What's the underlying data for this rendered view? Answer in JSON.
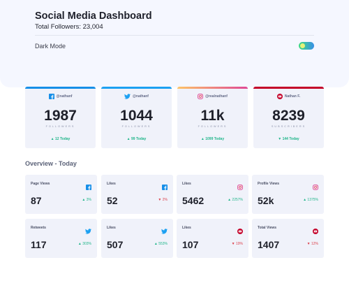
{
  "header": {
    "title": "Social Media Dashboard",
    "total_followers": "Total Followers: 23,004",
    "dark_mode_label": "Dark Mode"
  },
  "colors": {
    "facebook": "#178fe8",
    "twitter": "#1da1f2",
    "instagram_gradient": [
      "#fdc468",
      "#df4996"
    ],
    "youtube": "#c4032a",
    "up": "#1eb589",
    "down": "#dc414c"
  },
  "follower_cards": [
    {
      "network": "facebook",
      "icon": "facebook-icon",
      "handle": "@nathanf",
      "count": "1987",
      "label": "FOLLOWERS",
      "today": "▲ 12 Today"
    },
    {
      "network": "twitter",
      "icon": "twitter-icon",
      "handle": "@nathanf",
      "count": "1044",
      "label": "FOLLOWERS",
      "today": "▲ 99 Today"
    },
    {
      "network": "instagram",
      "icon": "instagram-icon",
      "handle": "@realnathanf",
      "count": "11k",
      "label": "FOLLOWERS",
      "today": "▲ 1099 Today"
    },
    {
      "network": "youtube",
      "icon": "youtube-icon",
      "handle": "Nathan F.",
      "count": "8239",
      "label": "SUBSCRIBERS",
      "today": "▼ 144 Today"
    }
  ],
  "overview": {
    "title": "Overview - Today",
    "cards": [
      {
        "label": "Page Views",
        "icon": "facebook-icon",
        "value": "87",
        "delta": "▲ 3%",
        "direction": "up"
      },
      {
        "label": "Likes",
        "icon": "facebook-icon",
        "value": "52",
        "delta": "▼ 2%",
        "direction": "down"
      },
      {
        "label": "Likes",
        "icon": "instagram-icon",
        "value": "5462",
        "delta": "▲ 2257%",
        "direction": "up"
      },
      {
        "label": "Profile Views",
        "icon": "instagram-icon",
        "value": "52k",
        "delta": "▲ 1375%",
        "direction": "up"
      },
      {
        "label": "Retweets",
        "icon": "twitter-icon",
        "value": "117",
        "delta": "▲ 303%",
        "direction": "up"
      },
      {
        "label": "Likes",
        "icon": "twitter-icon",
        "value": "507",
        "delta": "▲ 553%",
        "direction": "up"
      },
      {
        "label": "Likes",
        "icon": "youtube-icon",
        "value": "107",
        "delta": "▼ 19%",
        "direction": "down"
      },
      {
        "label": "Total Views",
        "icon": "youtube-icon",
        "value": "1407",
        "delta": "▼ 12%",
        "direction": "down"
      }
    ]
  }
}
